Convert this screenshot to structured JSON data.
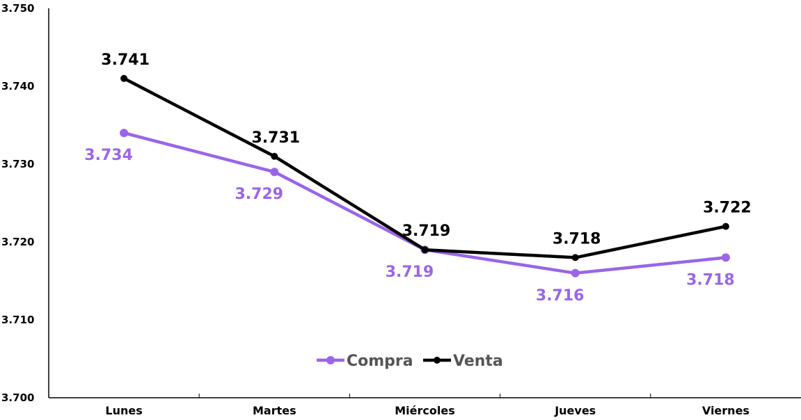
{
  "chart_data": {
    "type": "line",
    "categories": [
      "Lunes",
      "Martes",
      "Miércoles",
      "Jueves",
      "Viernes"
    ],
    "series": [
      {
        "name": "Compra",
        "color": "#9966e6",
        "values": [
          3.734,
          3.729,
          3.719,
          3.716,
          3.718
        ],
        "labels": [
          "3.734",
          "3.729",
          "3.719",
          "3.716",
          "3.718"
        ]
      },
      {
        "name": "Venta",
        "color": "#000000",
        "values": [
          3.741,
          3.731,
          3.719,
          3.718,
          3.722
        ],
        "labels": [
          "3.741",
          "3.731",
          "3.719",
          "3.718",
          "3.722"
        ]
      }
    ],
    "yticks": [
      "3.700",
      "3.710",
      "3.720",
      "3.730",
      "3.740",
      "3.750"
    ],
    "ylim": [
      3.7,
      3.75
    ],
    "title": "",
    "xlabel": "",
    "ylabel": "",
    "grid": false,
    "legend_position": "bottom-center"
  }
}
